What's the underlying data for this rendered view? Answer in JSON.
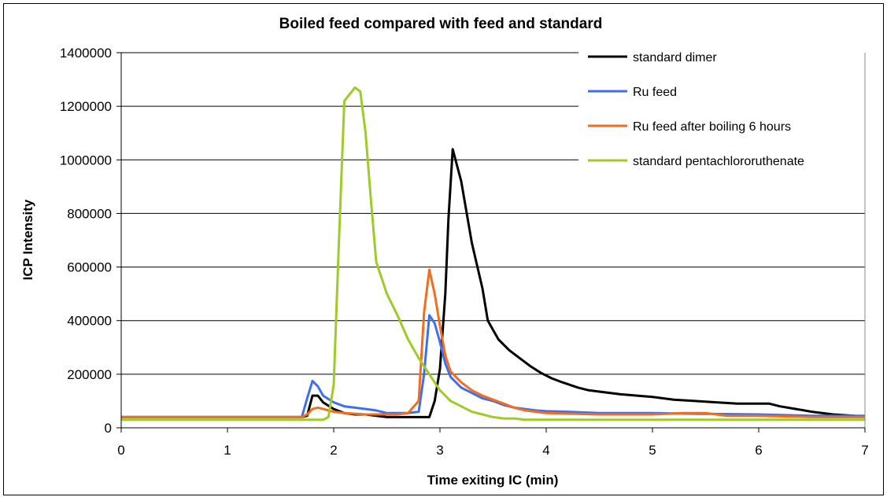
{
  "chart_data": {
    "type": "line",
    "title": "Boiled feed compared with feed and standard",
    "xlabel": "Time exiting IC (min)",
    "ylabel": "ICP Intensity",
    "xlim": [
      0,
      7
    ],
    "ylim": [
      0,
      1400000
    ],
    "x_ticks": [
      "0",
      "1",
      "2",
      "3",
      "4",
      "5",
      "6",
      "7"
    ],
    "y_ticks": [
      "0",
      "200000",
      "400000",
      "600000",
      "800000",
      "1000000",
      "1200000",
      "1400000"
    ],
    "grid": "horizontal",
    "legend_position": "top-right",
    "series": [
      {
        "name": "standard dimer",
        "color": "#000000",
        "points": [
          [
            0,
            40000
          ],
          [
            1.7,
            40000
          ],
          [
            1.75,
            45000
          ],
          [
            1.8,
            120000
          ],
          [
            1.85,
            120000
          ],
          [
            1.9,
            95000
          ],
          [
            2.0,
            70000
          ],
          [
            2.1,
            55000
          ],
          [
            2.2,
            50000
          ],
          [
            2.3,
            50000
          ],
          [
            2.4,
            45000
          ],
          [
            2.5,
            40000
          ],
          [
            2.6,
            40000
          ],
          [
            2.7,
            40000
          ],
          [
            2.8,
            40000
          ],
          [
            2.9,
            40000
          ],
          [
            2.95,
            100000
          ],
          [
            3.0,
            220000
          ],
          [
            3.05,
            500000
          ],
          [
            3.08,
            780000
          ],
          [
            3.12,
            1040000
          ],
          [
            3.2,
            920000
          ],
          [
            3.3,
            690000
          ],
          [
            3.4,
            520000
          ],
          [
            3.45,
            400000
          ],
          [
            3.55,
            330000
          ],
          [
            3.65,
            290000
          ],
          [
            3.75,
            260000
          ],
          [
            3.85,
            230000
          ],
          [
            3.95,
            205000
          ],
          [
            4.05,
            185000
          ],
          [
            4.15,
            170000
          ],
          [
            4.3,
            150000
          ],
          [
            4.4,
            140000
          ],
          [
            4.5,
            135000
          ],
          [
            4.7,
            125000
          ],
          [
            5.0,
            115000
          ],
          [
            5.2,
            105000
          ],
          [
            5.4,
            100000
          ],
          [
            5.6,
            95000
          ],
          [
            5.8,
            90000
          ],
          [
            6.1,
            90000
          ],
          [
            6.2,
            80000
          ],
          [
            6.35,
            70000
          ],
          [
            6.5,
            60000
          ],
          [
            6.7,
            50000
          ],
          [
            6.9,
            45000
          ],
          [
            7.0,
            40000
          ]
        ]
      },
      {
        "name": "Ru feed",
        "color": "#3f6fee",
        "points": [
          [
            0,
            40000
          ],
          [
            1.7,
            40000
          ],
          [
            1.75,
            110000
          ],
          [
            1.8,
            175000
          ],
          [
            1.85,
            155000
          ],
          [
            1.9,
            120000
          ],
          [
            2.0,
            95000
          ],
          [
            2.1,
            80000
          ],
          [
            2.2,
            75000
          ],
          [
            2.3,
            70000
          ],
          [
            2.4,
            65000
          ],
          [
            2.5,
            55000
          ],
          [
            2.6,
            55000
          ],
          [
            2.7,
            55000
          ],
          [
            2.8,
            60000
          ],
          [
            2.85,
            200000
          ],
          [
            2.9,
            420000
          ],
          [
            2.95,
            390000
          ],
          [
            3.0,
            320000
          ],
          [
            3.05,
            240000
          ],
          [
            3.1,
            190000
          ],
          [
            3.2,
            150000
          ],
          [
            3.3,
            130000
          ],
          [
            3.4,
            110000
          ],
          [
            3.5,
            100000
          ],
          [
            3.6,
            85000
          ],
          [
            3.7,
            75000
          ],
          [
            3.8,
            70000
          ],
          [
            3.9,
            65000
          ],
          [
            4.0,
            62000
          ],
          [
            4.2,
            60000
          ],
          [
            4.5,
            55000
          ],
          [
            5.0,
            55000
          ],
          [
            5.5,
            52000
          ],
          [
            6.0,
            50000
          ],
          [
            6.5,
            45000
          ],
          [
            7.0,
            45000
          ]
        ]
      },
      {
        "name": "Ru feed after boiling 6 hours",
        "color": "#f26e1c",
        "points": [
          [
            0,
            40000
          ],
          [
            1.7,
            40000
          ],
          [
            1.75,
            50000
          ],
          [
            1.8,
            70000
          ],
          [
            1.85,
            75000
          ],
          [
            1.9,
            70000
          ],
          [
            2.0,
            60000
          ],
          [
            2.1,
            55000
          ],
          [
            2.3,
            50000
          ],
          [
            2.5,
            50000
          ],
          [
            2.6,
            50000
          ],
          [
            2.7,
            55000
          ],
          [
            2.8,
            100000
          ],
          [
            2.85,
            430000
          ],
          [
            2.9,
            590000
          ],
          [
            2.95,
            500000
          ],
          [
            3.0,
            380000
          ],
          [
            3.05,
            270000
          ],
          [
            3.1,
            210000
          ],
          [
            3.2,
            170000
          ],
          [
            3.3,
            140000
          ],
          [
            3.4,
            120000
          ],
          [
            3.5,
            105000
          ],
          [
            3.6,
            90000
          ],
          [
            3.7,
            75000
          ],
          [
            3.8,
            65000
          ],
          [
            4.0,
            55000
          ],
          [
            4.5,
            50000
          ],
          [
            5.0,
            50000
          ],
          [
            5.3,
            55000
          ],
          [
            5.5,
            55000
          ],
          [
            5.7,
            45000
          ],
          [
            6.0,
            45000
          ],
          [
            6.5,
            40000
          ],
          [
            7.0,
            40000
          ]
        ]
      },
      {
        "name": "standard pentachlororuthenate",
        "color": "#9ecb26",
        "points": [
          [
            0,
            30000
          ],
          [
            1.7,
            30000
          ],
          [
            1.8,
            30000
          ],
          [
            1.9,
            30000
          ],
          [
            1.95,
            40000
          ],
          [
            2.0,
            160000
          ],
          [
            2.05,
            700000
          ],
          [
            2.1,
            1220000
          ],
          [
            2.2,
            1270000
          ],
          [
            2.25,
            1255000
          ],
          [
            2.3,
            1100000
          ],
          [
            2.35,
            850000
          ],
          [
            2.4,
            620000
          ],
          [
            2.5,
            500000
          ],
          [
            2.6,
            420000
          ],
          [
            2.7,
            330000
          ],
          [
            2.8,
            260000
          ],
          [
            2.9,
            200000
          ],
          [
            3.0,
            140000
          ],
          [
            3.1,
            100000
          ],
          [
            3.2,
            80000
          ],
          [
            3.3,
            60000
          ],
          [
            3.4,
            50000
          ],
          [
            3.5,
            40000
          ],
          [
            3.6,
            35000
          ],
          [
            3.7,
            35000
          ],
          [
            3.8,
            30000
          ],
          [
            4.0,
            30000
          ],
          [
            5.0,
            30000
          ],
          [
            6.0,
            30000
          ],
          [
            7.0,
            30000
          ]
        ]
      }
    ]
  }
}
